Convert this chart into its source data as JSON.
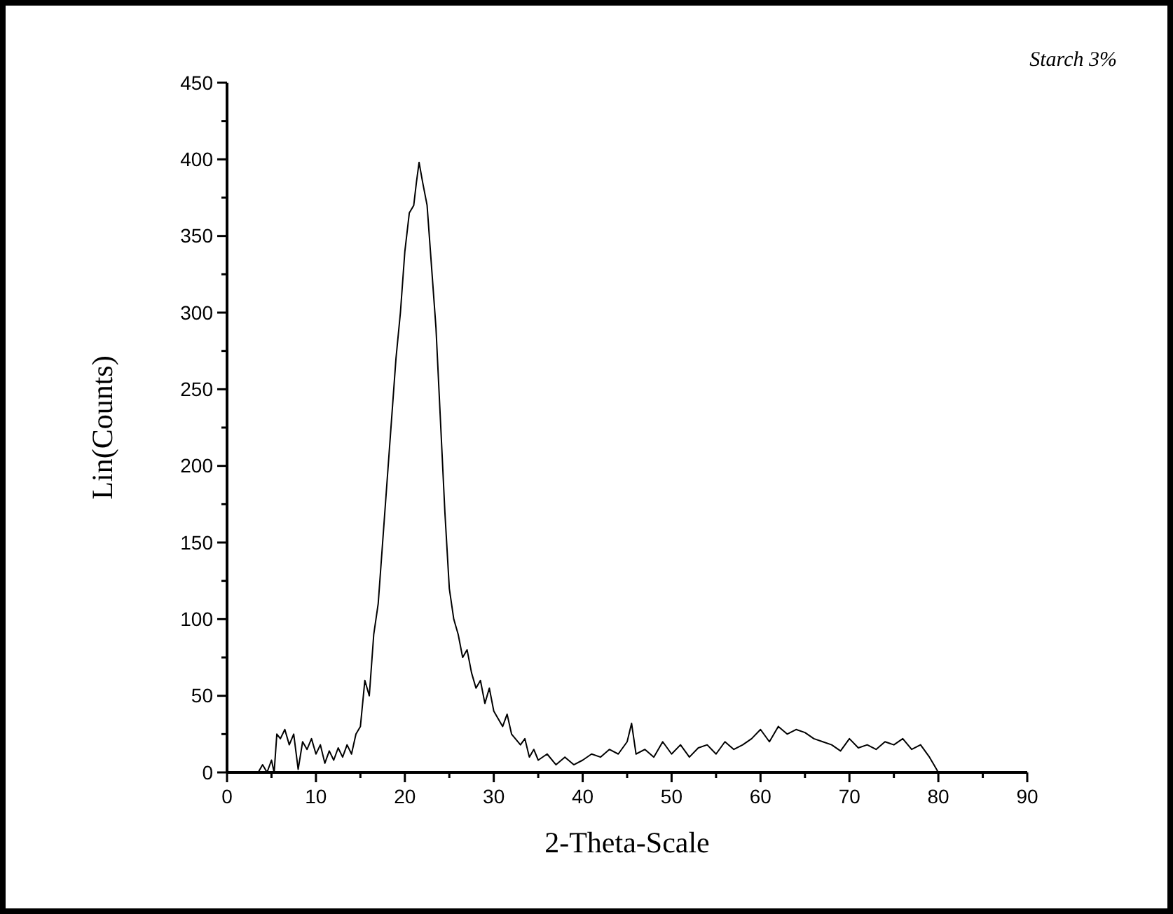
{
  "chart_data": {
    "type": "line",
    "xlabel": "2-Theta-Scale",
    "ylabel": "Lin(Counts)",
    "annotations": [
      "Starch 3%"
    ],
    "xlim": [
      0,
      90
    ],
    "ylim": [
      0,
      450
    ],
    "xticks": [
      0,
      {
        "value": 5,
        "label": null
      },
      10,
      {
        "value": 15,
        "label": null
      },
      20,
      {
        "value": 25,
        "label": null
      },
      30,
      {
        "value": 35,
        "label": null
      },
      40,
      {
        "value": 45,
        "label": null
      },
      50,
      {
        "value": 55,
        "label": null
      },
      60,
      {
        "value": 65,
        "label": null
      },
      70,
      {
        "value": 75,
        "label": null
      },
      80,
      {
        "value": 85,
        "label": null
      },
      90
    ],
    "yticks": [
      0,
      {
        "value": 25,
        "label": null
      },
      50,
      {
        "value": 75,
        "label": null
      },
      100,
      {
        "value": 125,
        "label": null
      },
      150,
      {
        "value": 175,
        "label": null
      },
      200,
      {
        "value": 225,
        "label": null
      },
      250,
      {
        "value": 275,
        "label": null
      },
      300,
      {
        "value": 325,
        "label": null
      },
      350,
      {
        "value": 375,
        "label": null
      },
      400,
      {
        "value": 425,
        "label": null
      },
      450
    ],
    "grid": false,
    "marker": "none",
    "line_style": "solid",
    "series": [
      {
        "color": "#000000",
        "x": [
          3.5,
          4,
          4.5,
          5,
          5.3,
          5.6,
          6,
          6.5,
          7,
          7.5,
          8,
          8.5,
          9,
          9.5,
          10,
          10.5,
          11,
          11.5,
          12,
          12.5,
          13,
          13.5,
          14,
          14.5,
          15,
          15.5,
          16,
          16.5,
          17,
          17.5,
          18,
          18.5,
          19,
          19.5,
          20,
          20.5,
          21,
          21.3,
          21.6,
          22,
          22.5,
          23,
          23.5,
          24,
          24.5,
          25,
          25.5,
          26,
          26.5,
          27,
          27.5,
          28,
          28.5,
          29,
          29.5,
          30,
          30.5,
          31,
          31.5,
          32,
          33,
          33.5,
          34,
          34.5,
          35,
          36,
          37,
          38,
          39,
          40,
          41,
          42,
          43,
          44,
          45,
          45.5,
          46,
          47,
          48,
          49,
          50,
          51,
          52,
          53,
          54,
          55,
          56,
          57,
          58,
          59,
          60,
          61,
          62,
          63,
          64,
          65,
          66,
          67,
          68,
          69,
          70,
          71,
          72,
          73,
          74,
          75,
          76,
          77,
          78,
          79,
          79.5,
          80
        ],
        "values": [
          0,
          5,
          0,
          8,
          0,
          25,
          22,
          28,
          18,
          25,
          2,
          20,
          15,
          22,
          12,
          18,
          6,
          14,
          8,
          16,
          10,
          18,
          12,
          25,
          30,
          60,
          50,
          90,
          110,
          150,
          190,
          230,
          270,
          300,
          340,
          365,
          370,
          385,
          398,
          385,
          370,
          330,
          290,
          230,
          170,
          120,
          100,
          90,
          75,
          80,
          65,
          55,
          60,
          45,
          55,
          40,
          35,
          30,
          38,
          25,
          18,
          22,
          10,
          15,
          8,
          12,
          5,
          10,
          5,
          8,
          12,
          10,
          15,
          12,
          20,
          32,
          12,
          15,
          10,
          20,
          12,
          18,
          10,
          16,
          18,
          12,
          20,
          15,
          18,
          22,
          28,
          20,
          30,
          25,
          28,
          26,
          22,
          20,
          18,
          14,
          22,
          16,
          18,
          15,
          20,
          18,
          22,
          15,
          18,
          10,
          5,
          0
        ]
      }
    ]
  }
}
